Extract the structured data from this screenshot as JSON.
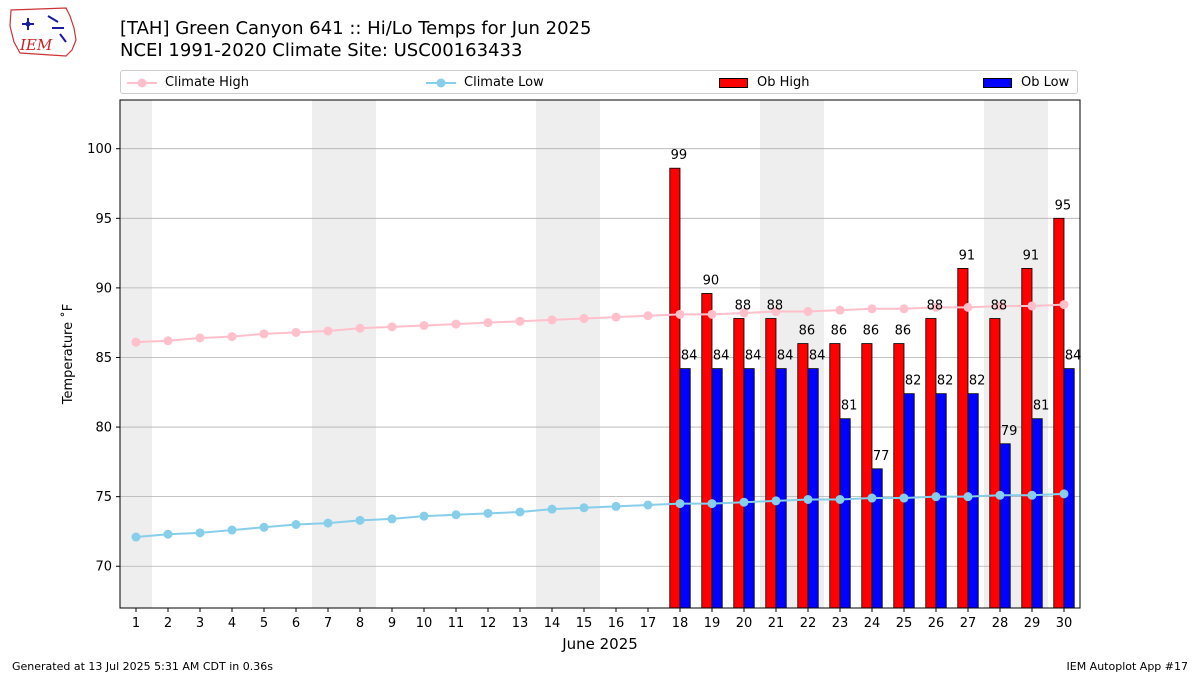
{
  "header": {
    "logo_text": "IEM",
    "title_line1": "[TAH] Green Canyon 641 :: Hi/Lo Temps for Jun 2025",
    "title_line2": "NCEI 1991-2020 Climate Site: USC00163433"
  },
  "footer": {
    "generated": "Generated at 13 Jul 2025 5:31 AM CDT in 0.36s",
    "app": "IEM Autoplot App #17"
  },
  "colors": {
    "climate_high": "#ffc0cb",
    "climate_low": "#87ceeb",
    "ob_high": "#ff0000",
    "ob_low": "#0000ff",
    "weekend_band": "#eeeeee",
    "grid": "#b0b0b0"
  },
  "chart_data": {
    "type": "bar",
    "xlabel": "June 2025",
    "ylabel": "Temperature ˚F",
    "xlim": [
      0.5,
      30.5
    ],
    "ylim": [
      67,
      103.5
    ],
    "x_ticks": [
      1,
      2,
      3,
      4,
      5,
      6,
      7,
      8,
      9,
      10,
      11,
      12,
      13,
      14,
      15,
      16,
      17,
      18,
      19,
      20,
      21,
      22,
      23,
      24,
      25,
      26,
      27,
      28,
      29,
      30
    ],
    "y_ticks": [
      70,
      75,
      80,
      85,
      90,
      95,
      100
    ],
    "grid": "horizontal",
    "legend_placement": "top",
    "shaded_days": [
      [
        0.5,
        1.5
      ],
      [
        6.5,
        8.5
      ],
      [
        13.5,
        15.5
      ],
      [
        20.5,
        22.5
      ],
      [
        27.5,
        29.5
      ]
    ],
    "legend": [
      "Climate High",
      "Climate Low",
      "Ob High",
      "Ob Low"
    ],
    "series": [
      {
        "name": "Climate High",
        "kind": "line",
        "x": [
          1,
          2,
          3,
          4,
          5,
          6,
          7,
          8,
          9,
          10,
          11,
          12,
          13,
          14,
          15,
          16,
          17,
          18,
          19,
          20,
          21,
          22,
          23,
          24,
          25,
          26,
          27,
          28,
          29,
          30
        ],
        "values": [
          86.1,
          86.2,
          86.4,
          86.5,
          86.7,
          86.8,
          86.9,
          87.1,
          87.2,
          87.3,
          87.4,
          87.5,
          87.6,
          87.7,
          87.8,
          87.9,
          88.0,
          88.1,
          88.1,
          88.2,
          88.3,
          88.3,
          88.4,
          88.5,
          88.5,
          88.6,
          88.6,
          88.7,
          88.7,
          88.8
        ]
      },
      {
        "name": "Climate Low",
        "kind": "line",
        "x": [
          1,
          2,
          3,
          4,
          5,
          6,
          7,
          8,
          9,
          10,
          11,
          12,
          13,
          14,
          15,
          16,
          17,
          18,
          19,
          20,
          21,
          22,
          23,
          24,
          25,
          26,
          27,
          28,
          29,
          30
        ],
        "values": [
          72.1,
          72.3,
          72.4,
          72.6,
          72.8,
          73.0,
          73.1,
          73.3,
          73.4,
          73.6,
          73.7,
          73.8,
          73.9,
          74.1,
          74.2,
          74.3,
          74.4,
          74.5,
          74.5,
          74.6,
          74.7,
          74.8,
          74.8,
          74.9,
          74.9,
          75.0,
          75.0,
          75.1,
          75.1,
          75.2
        ]
      },
      {
        "name": "Ob High",
        "kind": "bar",
        "x": [
          18,
          19,
          20,
          21,
          22,
          23,
          24,
          25,
          26,
          27,
          28,
          29,
          30
        ],
        "values": [
          98.6,
          89.6,
          87.8,
          87.8,
          86.0,
          86.0,
          86.0,
          86.0,
          87.8,
          91.4,
          87.8,
          91.4,
          95.0
        ],
        "labels": [
          "99",
          "90",
          "88",
          "88",
          "86",
          "86",
          "86",
          "86",
          "88",
          "91",
          "88",
          "91",
          "95"
        ]
      },
      {
        "name": "Ob Low",
        "kind": "bar",
        "x": [
          18,
          19,
          20,
          21,
          22,
          23,
          24,
          25,
          26,
          27,
          28,
          29,
          30
        ],
        "values": [
          84.2,
          84.2,
          84.2,
          84.2,
          84.2,
          80.6,
          77.0,
          82.4,
          82.4,
          82.4,
          78.8,
          80.6,
          84.2
        ],
        "labels": [
          "84",
          "84",
          "84",
          "84",
          "84",
          "81",
          "77",
          "82",
          "82",
          "82",
          "79",
          "81",
          "84"
        ]
      }
    ]
  }
}
